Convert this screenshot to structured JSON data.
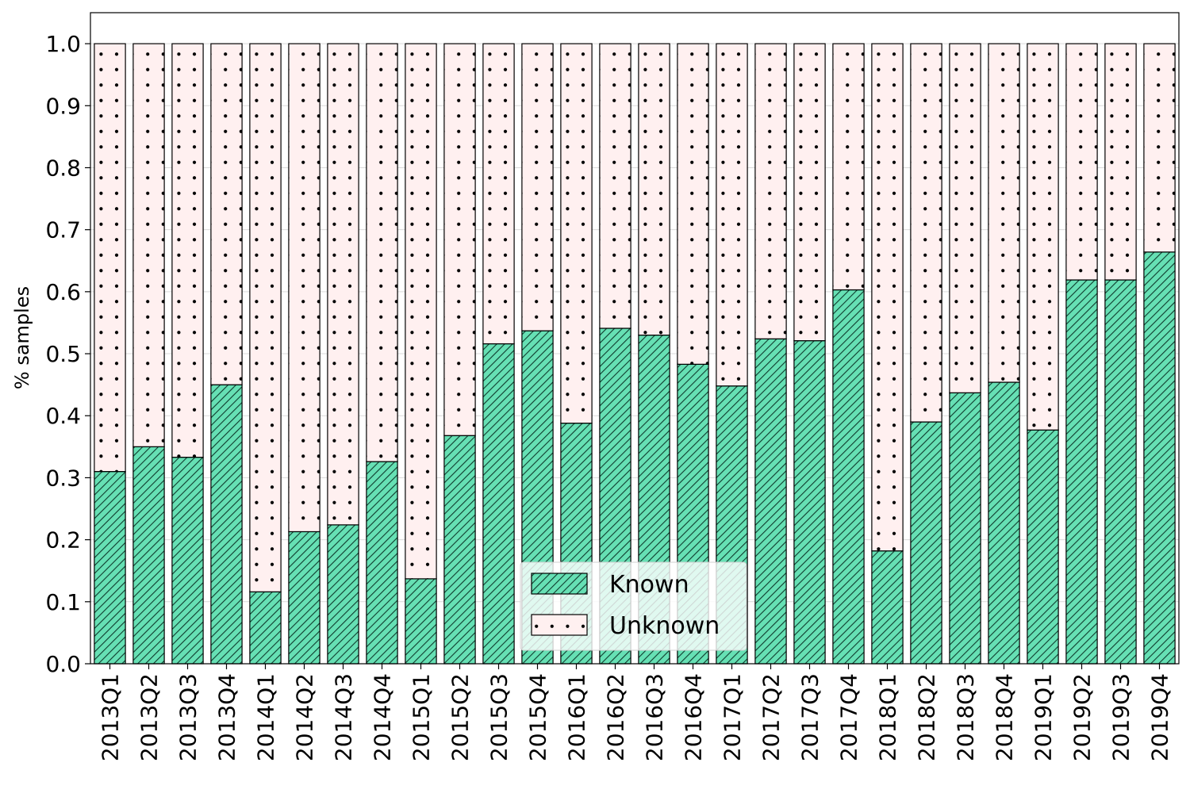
{
  "chart_data": {
    "type": "bar",
    "stacked": true,
    "normalized": true,
    "ylabel": "% samples",
    "xlabel": "",
    "ylim": [
      0,
      1.05
    ],
    "yticks": [
      "0.0",
      "0.1",
      "0.2",
      "0.3",
      "0.4",
      "0.5",
      "0.6",
      "0.7",
      "0.8",
      "0.9",
      "1.0"
    ],
    "grid": true,
    "legend_position": "bottom-center",
    "categories": [
      "2013Q1",
      "2013Q2",
      "2013Q3",
      "2013Q4",
      "2014Q1",
      "2014Q2",
      "2014Q3",
      "2014Q4",
      "2015Q1",
      "2015Q2",
      "2015Q3",
      "2015Q4",
      "2016Q1",
      "2016Q2",
      "2016Q3",
      "2016Q4",
      "2017Q1",
      "2017Q2",
      "2017Q3",
      "2017Q4",
      "2018Q1",
      "2018Q2",
      "2018Q3",
      "2018Q4",
      "2019Q1",
      "2019Q2",
      "2019Q3",
      "2019Q4"
    ],
    "series": [
      {
        "name": "Known",
        "color": "#66e0b4",
        "pattern": "diagonal-hatch",
        "values": [
          0.31,
          0.35,
          0.333,
          0.45,
          0.116,
          0.213,
          0.224,
          0.326,
          0.137,
          0.368,
          0.516,
          0.537,
          0.388,
          0.541,
          0.53,
          0.483,
          0.448,
          0.524,
          0.521,
          0.603,
          0.182,
          0.39,
          0.437,
          0.454,
          0.377,
          0.619,
          0.619,
          0.664
        ]
      },
      {
        "name": "Unknown",
        "color": "#fff0f0",
        "pattern": "dots",
        "values": [
          0.69,
          0.65,
          0.667,
          0.55,
          0.884,
          0.787,
          0.776,
          0.674,
          0.863,
          0.632,
          0.484,
          0.463,
          0.612,
          0.459,
          0.47,
          0.517,
          0.552,
          0.476,
          0.479,
          0.397,
          0.818,
          0.61,
          0.563,
          0.546,
          0.623,
          0.381,
          0.381,
          0.336
        ]
      }
    ]
  }
}
